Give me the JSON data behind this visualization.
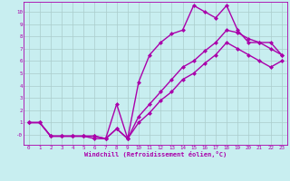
{
  "background_color": "#c8eef0",
  "grid_color": "#aacccc",
  "line_color": "#aa00aa",
  "spine_color": "#8844aa",
  "xlabel": "Windchill (Refroidissement éolien,°C)",
  "xlim": [
    -0.5,
    23.5
  ],
  "ylim": [
    -0.8,
    10.8
  ],
  "xticks": [
    0,
    1,
    2,
    3,
    4,
    5,
    6,
    7,
    8,
    9,
    10,
    11,
    12,
    13,
    14,
    15,
    16,
    17,
    18,
    19,
    20,
    21,
    22,
    23
  ],
  "yticks": [
    0,
    1,
    2,
    3,
    4,
    5,
    6,
    7,
    8,
    9,
    10
  ],
  "ytick_labels": [
    "-0",
    "1",
    "2",
    "3",
    "4",
    "5",
    "6",
    "7",
    "8",
    "9",
    "10"
  ],
  "curve1_x": [
    0,
    1,
    2,
    3,
    4,
    5,
    6,
    7,
    8,
    9,
    10,
    11,
    12,
    13,
    14,
    15,
    16,
    17,
    18,
    19,
    20,
    21,
    22,
    23
  ],
  "curve1_y": [
    1.0,
    1.0,
    -0.1,
    -0.1,
    -0.1,
    -0.1,
    -0.3,
    -0.3,
    2.5,
    -0.3,
    4.3,
    6.5,
    7.5,
    8.2,
    8.5,
    10.5,
    10.0,
    9.5,
    10.5,
    8.5,
    7.5,
    7.5,
    7.5,
    6.5
  ],
  "curve2_x": [
    0,
    1,
    2,
    3,
    4,
    5,
    6,
    7,
    8,
    9,
    10,
    11,
    12,
    13,
    14,
    15,
    16,
    17,
    18,
    19,
    20,
    21,
    22,
    23
  ],
  "curve2_y": [
    1.0,
    1.0,
    -0.1,
    -0.1,
    -0.1,
    -0.1,
    -0.1,
    -0.3,
    0.5,
    -0.3,
    1.5,
    2.5,
    3.5,
    4.5,
    5.5,
    6.0,
    6.8,
    7.5,
    8.5,
    8.3,
    7.8,
    7.5,
    7.0,
    6.5
  ],
  "curve3_x": [
    0,
    1,
    2,
    3,
    4,
    5,
    6,
    7,
    8,
    9,
    10,
    11,
    12,
    13,
    14,
    15,
    16,
    17,
    18,
    19,
    20,
    21,
    22,
    23
  ],
  "curve3_y": [
    1.0,
    1.0,
    -0.1,
    -0.1,
    -0.1,
    -0.1,
    -0.1,
    -0.3,
    0.5,
    -0.3,
    1.0,
    1.8,
    2.8,
    3.5,
    4.5,
    5.0,
    5.8,
    6.5,
    7.5,
    7.0,
    6.5,
    6.0,
    5.5,
    6.0
  ],
  "marker": "D",
  "markersize": 2.5,
  "linewidth": 1.0
}
